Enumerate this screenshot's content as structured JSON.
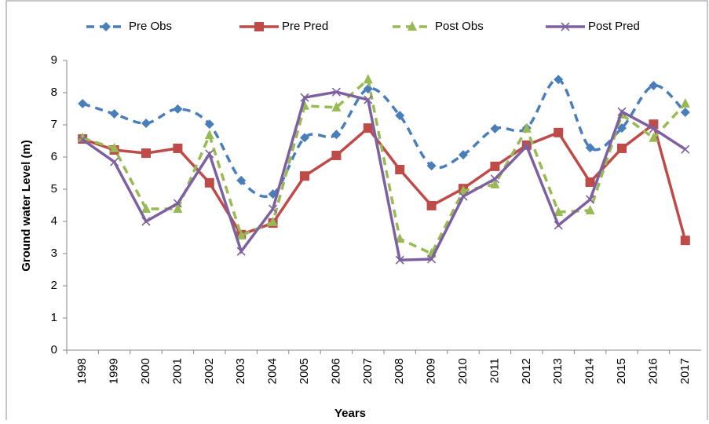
{
  "chart_data": {
    "type": "line",
    "x_label": "Years",
    "y_label": "Ground water Level  (m)",
    "categories": [
      "1998",
      "1999",
      "2000",
      "2001",
      "2002",
      "2003",
      "2004",
      "2005",
      "2006",
      "2007",
      "2008",
      "2009",
      "2010",
      "2011",
      "2012",
      "2013",
      "2014",
      "2015",
      "2016",
      "2017"
    ],
    "series": [
      {
        "name": "Pre  Obs",
        "color": "#4a7ebb",
        "dashed": true,
        "smooth": true,
        "marker": "diamond",
        "values": [
          7.66,
          7.34,
          7.05,
          7.49,
          7.02,
          5.27,
          4.85,
          6.6,
          6.7,
          8.12,
          7.29,
          5.73,
          6.07,
          6.88,
          6.9,
          8.41,
          6.29,
          6.9,
          8.22,
          7.39
        ]
      },
      {
        "name": "Pre  Pred",
        "color": "#be4b48",
        "dashed": false,
        "smooth": false,
        "marker": "square",
        "values": [
          6.56,
          6.22,
          6.12,
          6.27,
          5.2,
          3.59,
          3.95,
          5.41,
          6.05,
          6.9,
          5.61,
          4.49,
          5.02,
          5.71,
          6.37,
          6.76,
          5.22,
          6.27,
          7.02,
          3.41
        ]
      },
      {
        "name": "Post Obs",
        "color": "#98b954",
        "dashed": true,
        "smooth": false,
        "marker": "triangle",
        "values": [
          6.59,
          6.27,
          4.39,
          4.39,
          6.68,
          3.56,
          3.98,
          7.59,
          7.54,
          8.41,
          3.46,
          3.0,
          4.95,
          5.15,
          6.88,
          4.29,
          4.34,
          7.32,
          6.59,
          7.66
        ]
      },
      {
        "name": "Post Pred",
        "color": "#7d60a0",
        "dashed": false,
        "smooth": false,
        "marker": "x",
        "values": [
          6.54,
          5.85,
          4.0,
          4.56,
          6.1,
          3.07,
          4.39,
          7.85,
          8.02,
          7.78,
          2.8,
          2.83,
          4.78,
          5.32,
          6.34,
          3.88,
          4.68,
          7.41,
          6.88,
          6.24
        ]
      }
    ],
    "ylim": [
      0,
      9
    ],
    "yticks": [
      0,
      1,
      2,
      3,
      4,
      5,
      6,
      7,
      8,
      9
    ],
    "grid": false,
    "legend": "top"
  }
}
